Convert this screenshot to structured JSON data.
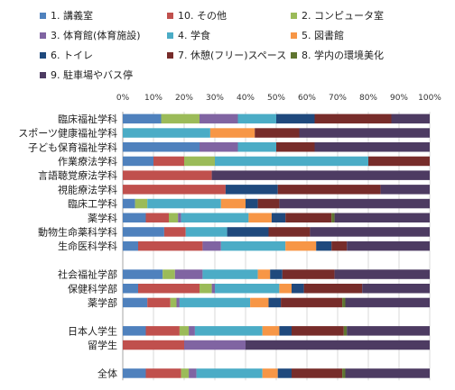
{
  "chart_data": {
    "type": "bar",
    "orientation": "horizontal",
    "stacked": true,
    "xlim": [
      0,
      100
    ],
    "x_ticks": [
      "0%",
      "10%",
      "20%",
      "30%",
      "40%",
      "50%",
      "60%",
      "70%",
      "80%",
      "90%",
      "100%"
    ],
    "grid": true,
    "legend_position": "top",
    "categories": [
      "臨床福祉学科",
      "スポーツ健康福祉学科",
      "子ども保育福祉学科",
      "作業療法学科",
      "言語聴覚療法学科",
      "視能療法学科",
      "臨床工学科",
      "薬学科",
      "動物生命薬科学科",
      "生命医科学科",
      "",
      "社会福祉学部",
      "保健科学部",
      "薬学部",
      "",
      "日本人学生",
      "留学生",
      "",
      "全体"
    ],
    "series": [
      {
        "name": "1. 講義室",
        "color": "#4F81BD",
        "values": [
          12.5,
          0,
          25,
          10,
          0,
          0,
          4,
          7.5,
          13.5,
          5,
          0,
          13,
          5,
          8,
          0,
          7.5,
          0,
          0,
          7.5
        ]
      },
      {
        "name": "10. その他",
        "color": "#C0504D",
        "values": [
          0,
          0,
          0,
          10,
          29,
          33.5,
          0,
          7.5,
          7,
          21,
          0,
          0,
          20,
          7.5,
          0,
          11,
          20,
          0,
          11.5
        ]
      },
      {
        "name": "2. コンピュータ室",
        "color": "#9BBB59",
        "values": [
          12.5,
          0,
          0,
          10,
          0,
          0,
          4,
          3,
          0,
          0,
          0,
          4,
          4,
          2,
          0,
          3,
          0,
          0,
          2.5
        ]
      },
      {
        "name": "3. 体育館(体育施設)",
        "color": "#8064A2",
        "values": [
          12.5,
          0,
          12.5,
          0,
          0,
          0,
          0,
          1,
          0,
          6,
          0,
          9,
          1,
          1,
          0,
          2,
          20,
          0,
          2.5
        ]
      },
      {
        "name": "4. 学食",
        "color": "#4BACC6",
        "values": [
          12.5,
          28.5,
          12.5,
          50,
          0,
          0,
          24,
          22,
          13.5,
          21,
          0,
          18,
          21,
          23,
          0,
          22,
          0,
          0,
          21.5
        ]
      },
      {
        "name": "5. 図書館",
        "color": "#F79646",
        "values": [
          0,
          14.5,
          0,
          0,
          0,
          0,
          8,
          7.5,
          0,
          10,
          0,
          4,
          4,
          6,
          0,
          5.5,
          0,
          0,
          5
        ]
      },
      {
        "name": "6. トイレ",
        "color": "#1F497D",
        "values": [
          12.5,
          0,
          0,
          0,
          0,
          17,
          4,
          4.5,
          13.5,
          5,
          0,
          4,
          4,
          4,
          0,
          4,
          0,
          0,
          4.5
        ]
      },
      {
        "name": "7. 休憩(フリー)スペース",
        "color": "#772C2A",
        "values": [
          25,
          14.5,
          12.5,
          20,
          0,
          33.5,
          7,
          15,
          13.5,
          5,
          0,
          17,
          19,
          20,
          0,
          17,
          0,
          0,
          16.5
        ]
      },
      {
        "name": "8. 学内の環境美化",
        "color": "#5F7530",
        "values": [
          0,
          0,
          0,
          0,
          0,
          0,
          0,
          1,
          0,
          0,
          0,
          0,
          0,
          1,
          0,
          1,
          0,
          0,
          1
        ]
      },
      {
        "name": "9. 駐車場やバス停",
        "color": "#4D3B62",
        "values": [
          12.5,
          42.5,
          37.5,
          0,
          71,
          16,
          49,
          31,
          39,
          27,
          0,
          31,
          22,
          27.5,
          0,
          27,
          60,
          0,
          27.5
        ]
      }
    ]
  }
}
